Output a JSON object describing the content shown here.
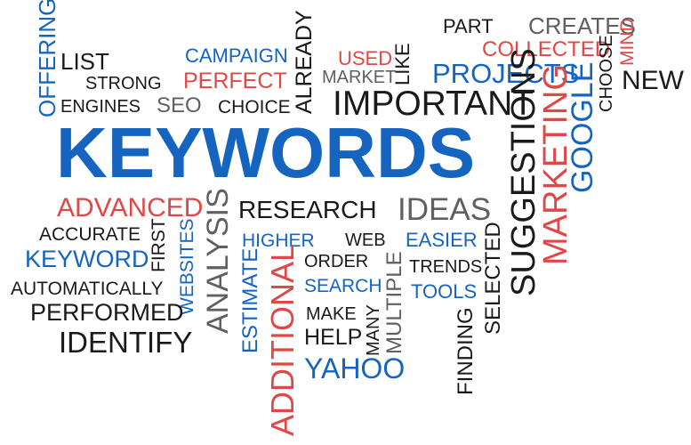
{
  "colors": {
    "black": "#1a1a1a",
    "blue": "#1565c0",
    "red": "#e04848",
    "gray": "#606060"
  },
  "words": {
    "offering": "OFFERING",
    "list": "LIST",
    "strong": "STRONG",
    "engines": "ENGINES",
    "seo": "SEO",
    "choice": "CHOICE",
    "campaign": "CAMPAIGN",
    "perfect": "PERFECT",
    "already": "ALREADY",
    "used": "USED",
    "market": "MARKET",
    "like": "LIKE",
    "part": "PART",
    "creates": "CREATES",
    "mind": "MIND",
    "collected": "COLLECTED",
    "choose": "CHOOSE",
    "projects": "PROJECTS",
    "new": "NEW",
    "important": "IMPORTANT",
    "keywords": "KEYWORDS",
    "suggestions": "SUGGESTIONS",
    "marketing": "MARKETING",
    "google": "GOOGLE",
    "advanced": "ADVANCED",
    "analysis": "ANALYSIS",
    "research": "RESEARCH",
    "ideas": "IDEAS",
    "accurate": "ACCURATE",
    "first": "FIRST",
    "keyword": "KEYWORD",
    "websites": "WEBSITES",
    "automatically": "AUTOMATICALLY",
    "performed": "PERFORMED",
    "identify": "IDENTIFY",
    "higher": "HIGHER",
    "web": "WEB",
    "easier": "EASIER",
    "estimate": "ESTIMATE",
    "additional": "ADDITIONAL",
    "order": "ORDER",
    "search": "SEARCH",
    "make": "MAKE",
    "help": "HELP",
    "yahoo": "YAHOO",
    "many": "MANY",
    "multiple": "MULTIPLE",
    "trends": "TRENDS",
    "tools": "TOOLS",
    "finding": "FINDING",
    "selected": "SELECTED"
  }
}
